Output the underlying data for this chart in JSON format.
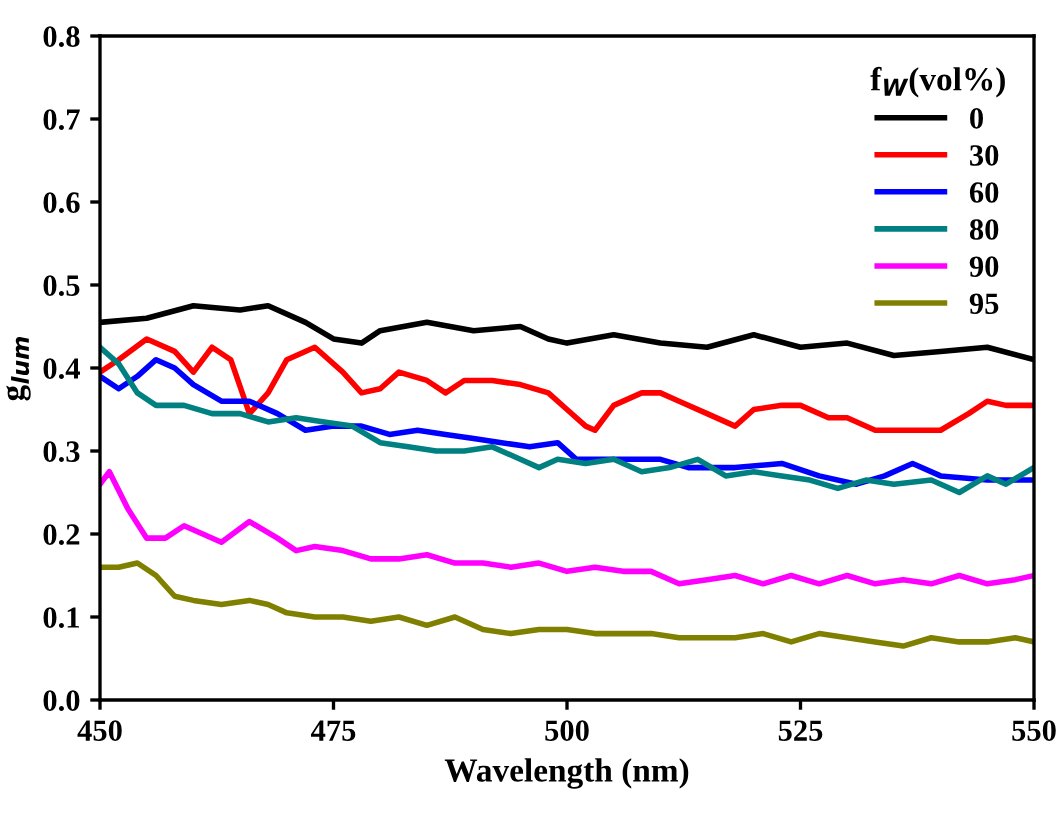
{
  "chart_data": {
    "type": "line",
    "xlabel": "Wavelength (nm)",
    "ylabel": "g$_{lum}$",
    "legend_title": "f$_{W}$(vol%)",
    "legend": "top right",
    "grid": false,
    "marker": "none",
    "line_style": "solid",
    "xlim": [
      450,
      550
    ],
    "xticks": [
      450,
      475,
      500,
      525,
      550
    ],
    "ylim": [
      0.0,
      0.8
    ],
    "yticks": [
      {
        "value": 0.0,
        "label": "0.0"
      },
      {
        "value": 0.1,
        "label": "0.1"
      },
      {
        "value": 0.2,
        "label": "0.2"
      },
      {
        "value": 0.3,
        "label": "0.3"
      },
      {
        "value": 0.4,
        "label": "0.4"
      },
      {
        "value": 0.5,
        "label": "0.5"
      },
      {
        "value": 0.6,
        "label": "0.6"
      },
      {
        "value": 0.7,
        "label": "0.7"
      },
      {
        "value": 0.8,
        "label": "0.8"
      }
    ],
    "series": [
      {
        "name": "0",
        "color": "#000000",
        "x": [
          450,
          455,
          460,
          465,
          468,
          472,
          475,
          478,
          480,
          485,
          490,
          495,
          498,
          500,
          505,
          510,
          515,
          520,
          525,
          530,
          535,
          540,
          545,
          550
        ],
        "values": [
          0.455,
          0.46,
          0.475,
          0.47,
          0.475,
          0.455,
          0.435,
          0.43,
          0.445,
          0.455,
          0.445,
          0.45,
          0.435,
          0.43,
          0.44,
          0.43,
          0.425,
          0.44,
          0.425,
          0.43,
          0.415,
          0.42,
          0.425,
          0.41
        ]
      },
      {
        "name": "30",
        "color": "#ff0000",
        "x": [
          450,
          452,
          455,
          458,
          460,
          462,
          464,
          466,
          468,
          470,
          473,
          476,
          478,
          480,
          482,
          485,
          487,
          489,
          492,
          495,
          498,
          500,
          502,
          503,
          505,
          508,
          510,
          512,
          515,
          518,
          520,
          523,
          525,
          528,
          530,
          533,
          537,
          540,
          543,
          545,
          547,
          550
        ],
        "values": [
          0.395,
          0.41,
          0.435,
          0.42,
          0.395,
          0.425,
          0.41,
          0.345,
          0.37,
          0.41,
          0.425,
          0.395,
          0.37,
          0.375,
          0.395,
          0.385,
          0.37,
          0.385,
          0.385,
          0.38,
          0.37,
          0.35,
          0.33,
          0.325,
          0.355,
          0.37,
          0.37,
          0.36,
          0.345,
          0.33,
          0.35,
          0.355,
          0.355,
          0.34,
          0.34,
          0.325,
          0.325,
          0.325,
          0.345,
          0.36,
          0.355,
          0.355
        ]
      },
      {
        "name": "60",
        "color": "#0000ff",
        "x": [
          450,
          452,
          454,
          456,
          458,
          460,
          463,
          466,
          469,
          472,
          475,
          478,
          481,
          484,
          487,
          490,
          493,
          496,
          499,
          501,
          505,
          510,
          513,
          518,
          523,
          527,
          531,
          534,
          537,
          540,
          545,
          550
        ],
        "values": [
          0.39,
          0.375,
          0.39,
          0.41,
          0.4,
          0.38,
          0.36,
          0.36,
          0.345,
          0.325,
          0.33,
          0.33,
          0.32,
          0.325,
          0.32,
          0.315,
          0.31,
          0.305,
          0.31,
          0.29,
          0.29,
          0.29,
          0.28,
          0.28,
          0.285,
          0.27,
          0.26,
          0.27,
          0.285,
          0.27,
          0.265,
          0.265
        ]
      },
      {
        "name": "80",
        "color": "#008080",
        "x": [
          450,
          452,
          454,
          456,
          459,
          462,
          465,
          468,
          471,
          474,
          477,
          480,
          483,
          486,
          489,
          492,
          495,
          497,
          499,
          502,
          505,
          508,
          511,
          514,
          517,
          520,
          523,
          526,
          529,
          532,
          535,
          539,
          542,
          545,
          547,
          550
        ],
        "values": [
          0.425,
          0.405,
          0.37,
          0.355,
          0.355,
          0.345,
          0.345,
          0.335,
          0.34,
          0.335,
          0.33,
          0.31,
          0.305,
          0.3,
          0.3,
          0.305,
          0.29,
          0.28,
          0.29,
          0.285,
          0.29,
          0.275,
          0.28,
          0.29,
          0.27,
          0.275,
          0.27,
          0.265,
          0.255,
          0.265,
          0.26,
          0.265,
          0.25,
          0.27,
          0.26,
          0.28
        ]
      },
      {
        "name": "90",
        "color": "#ff00ff",
        "x": [
          450,
          451,
          453,
          455,
          457,
          459,
          461,
          463,
          466,
          469,
          471,
          473,
          476,
          479,
          482,
          485,
          488,
          491,
          494,
          497,
          500,
          503,
          506,
          509,
          512,
          515,
          518,
          521,
          524,
          527,
          530,
          533,
          536,
          539,
          542,
          545,
          548,
          550
        ],
        "values": [
          0.26,
          0.275,
          0.23,
          0.195,
          0.195,
          0.21,
          0.2,
          0.19,
          0.215,
          0.195,
          0.18,
          0.185,
          0.18,
          0.17,
          0.17,
          0.175,
          0.165,
          0.165,
          0.16,
          0.165,
          0.155,
          0.16,
          0.155,
          0.155,
          0.14,
          0.145,
          0.15,
          0.14,
          0.15,
          0.14,
          0.15,
          0.14,
          0.145,
          0.14,
          0.15,
          0.14,
          0.145,
          0.15
        ]
      },
      {
        "name": "95",
        "color": "#808000",
        "x": [
          450,
          452,
          454,
          456,
          458,
          460,
          463,
          466,
          468,
          470,
          473,
          476,
          479,
          482,
          485,
          488,
          491,
          494,
          497,
          500,
          503,
          506,
          509,
          512,
          515,
          518,
          521,
          524,
          527,
          530,
          533,
          536,
          539,
          542,
          545,
          548,
          550
        ],
        "values": [
          0.16,
          0.16,
          0.165,
          0.15,
          0.125,
          0.12,
          0.115,
          0.12,
          0.115,
          0.105,
          0.1,
          0.1,
          0.095,
          0.1,
          0.09,
          0.1,
          0.085,
          0.08,
          0.085,
          0.085,
          0.08,
          0.08,
          0.08,
          0.075,
          0.075,
          0.075,
          0.08,
          0.07,
          0.08,
          0.075,
          0.07,
          0.065,
          0.075,
          0.07,
          0.07,
          0.075,
          0.07
        ]
      }
    ]
  }
}
